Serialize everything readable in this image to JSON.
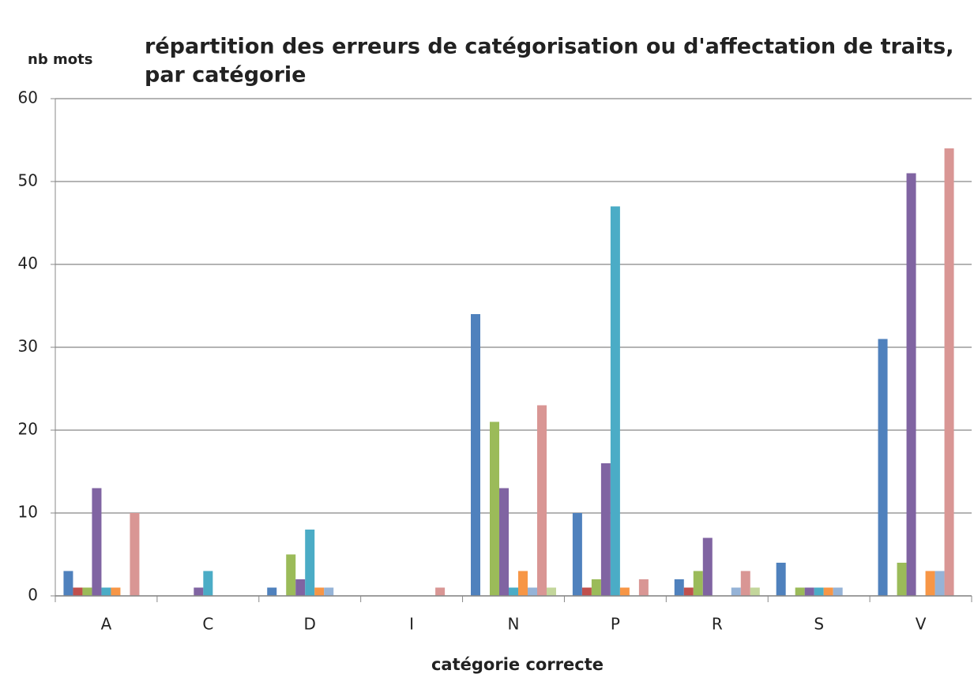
{
  "chart_data": {
    "type": "bar",
    "title": [
      "répartition des erreurs de catégorisation ou d'affectation de traits,",
      "par catégorie"
    ],
    "y_label": "nb mots",
    "x_label": "catégorie correcte",
    "categories": [
      "A",
      "C",
      "D",
      "I",
      "N",
      "P",
      "R",
      "S",
      "V"
    ],
    "series": [
      {
        "color": "#4f81bd",
        "values": [
          3,
          0,
          1,
          0,
          34,
          10,
          2,
          4,
          31
        ]
      },
      {
        "color": "#c0504d",
        "values": [
          1,
          0,
          0,
          0,
          0,
          1,
          1,
          0,
          0
        ]
      },
      {
        "color": "#9bbb59",
        "values": [
          1,
          0,
          5,
          0,
          21,
          2,
          3,
          1,
          4
        ]
      },
      {
        "color": "#8064a2",
        "values": [
          13,
          1,
          2,
          0,
          13,
          16,
          7,
          1,
          51
        ]
      },
      {
        "color": "#4bacc6",
        "values": [
          1,
          3,
          8,
          0,
          1,
          47,
          0,
          1,
          0
        ]
      },
      {
        "color": "#f79646",
        "values": [
          1,
          0,
          1,
          0,
          3,
          1,
          0,
          1,
          3
        ]
      },
      {
        "color": "#95b3d7",
        "values": [
          0,
          0,
          1,
          0,
          1,
          0,
          1,
          1,
          3
        ]
      },
      {
        "color": "#d99694",
        "values": [
          10,
          0,
          0,
          1,
          23,
          2,
          3,
          0,
          54
        ]
      },
      {
        "color": "#c3d69b",
        "values": [
          0,
          0,
          0,
          0,
          1,
          0,
          1,
          0,
          0
        ]
      }
    ],
    "ylim": [
      0,
      60
    ],
    "yticks": [
      0,
      10,
      20,
      30,
      40,
      50,
      60
    ],
    "grid": true
  }
}
